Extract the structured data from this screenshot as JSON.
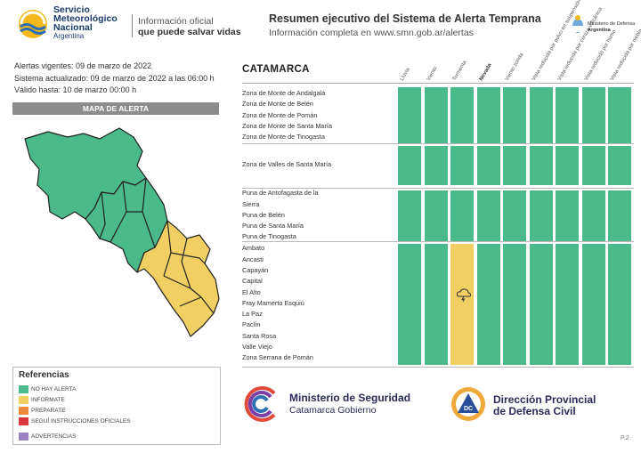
{
  "header": {
    "org_line1": "Servicio",
    "org_line2": "Meteorológico",
    "org_line3": "Nacional",
    "org_line4": "Argentina",
    "slogan_line1": "Información oficial",
    "slogan_line2": "que puede salvar vidas",
    "title": "Resumen ejecutivo del Sistema de Alerta Temprana",
    "subtitle": "Información completa en www.smn.gob.ar/alertas",
    "ministry_line1": "Ministerio de Defensa",
    "ministry_line2": "Argentina"
  },
  "dates": {
    "alertas": "Alertas vigentes: 09 de marzo de 2022",
    "actualizado": "Sistema actualizado: 09 de marzo de 2022 a las 06:00 h",
    "valido": "Válido hasta: 10 de marzo 00:00 h"
  },
  "map": {
    "title": "MAPA DE ALERTA"
  },
  "references": {
    "title": "Referencias",
    "items": [
      {
        "label": "NO HAY ALERTA",
        "color": "#4aba8b"
      },
      {
        "label": "INFORMATE",
        "color": "#f2cf63"
      },
      {
        "label": "PREPARATE",
        "color": "#ec8a3c"
      },
      {
        "label": "SEGUÍ INSTRUCCIONES OFICIALES",
        "color": "#d9363e"
      },
      {
        "label": "ADVERTENCIAS",
        "color": "#9a7fc1"
      }
    ]
  },
  "table": {
    "province": "CATAMARCA",
    "columns": [
      "Lluvia",
      "Viento",
      "Tormenta",
      "Nevada",
      "Viento zonda",
      "Vista reducida por polvo en suspensión",
      "Vista reducida por ceniza volcánica",
      "Vista reducida por humo",
      "Vista reducida por niebla"
    ],
    "groups": [
      {
        "zones": [
          "Zona de Monte de Andalgalá",
          "Zona de Monte de Belén",
          "Zona de Monte de Pomán",
          "Zona de Monte de Santa María",
          "Zona de Monte de Tinogasta"
        ],
        "levels": [
          "none",
          "none",
          "none",
          "none",
          "none",
          "none",
          "none",
          "none",
          "none"
        ]
      },
      {
        "zones": [
          "Zona de Valles de Santa María"
        ],
        "levels": [
          "none",
          "none",
          "none",
          "none",
          "none",
          "none",
          "none",
          "none",
          "none"
        ]
      },
      {
        "zones": [
          "Puna de Antofagasta de la",
          "Sierra",
          "Puna de Belén",
          "Puna de Santa María",
          "Puna de Tinogasta"
        ],
        "levels": [
          "none",
          "none",
          "none",
          "none",
          "none",
          "none",
          "none",
          "none",
          "none"
        ]
      },
      {
        "zones": [
          "Ambato",
          "Ancasti",
          "Capayán",
          "Capital",
          "El Alto",
          "Fray Mamerto Esquiú",
          "La Paz",
          "Paclín",
          "Santa Rosa",
          "Valle Viejo",
          "Zona Serrana de Pomán"
        ],
        "levels": [
          "none",
          "none",
          "informate",
          "none",
          "none",
          "none",
          "none",
          "none",
          "none"
        ]
      }
    ],
    "storm_icon": "thunderstorm-icon"
  },
  "footer": {
    "minseg_line1": "Ministerio de Seguridad",
    "minseg_line2": "Catamarca Gobierno",
    "dc_line1": "Dirección Provincial",
    "dc_line2": "de Defensa Civil",
    "dc_badge": "DC",
    "page": "P.2"
  }
}
